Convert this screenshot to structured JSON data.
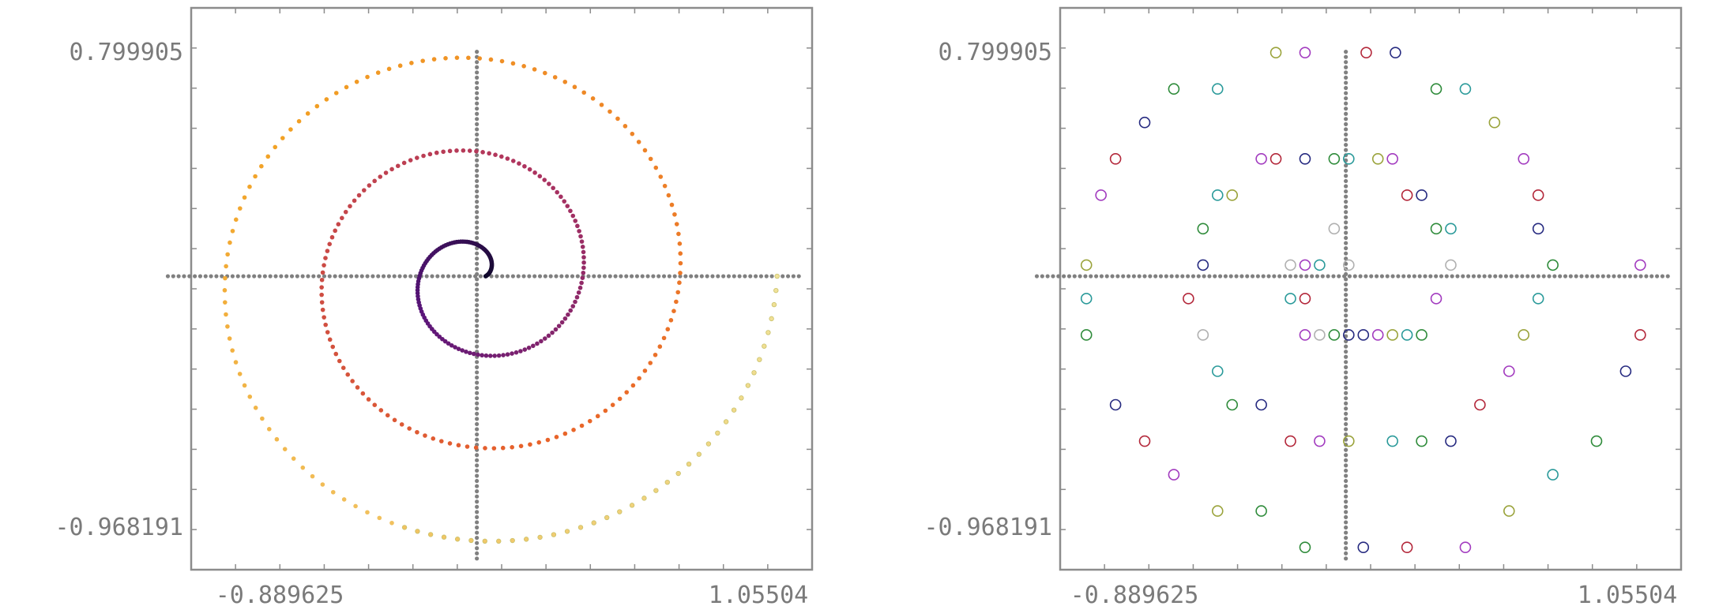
{
  "chart_data": [
    {
      "type": "scatter",
      "title": "",
      "xlabel": "",
      "ylabel": "",
      "xlim": [
        -0.98,
        1.15
      ],
      "ylim": [
        -1.05,
        0.96
      ],
      "x_ticks": [
        {
          "value": -0.889625,
          "label": "-0.889625"
        },
        {
          "value": 1.05504,
          "label": "1.05504"
        }
      ],
      "y_ticks": [
        {
          "value": 0.799905,
          "label": "0.799905"
        },
        {
          "value": -0.968191,
          "label": "-0.968191"
        }
      ],
      "axis_color": "#808080",
      "series": [
        {
          "name": "spiral",
          "style": "filled",
          "colors": [
            "#0d0829",
            "#5a157a",
            "#b0355e",
            "#e8622a",
            "#f2a124",
            "#f0e29a"
          ],
          "points": []
        }
      ]
    },
    {
      "type": "scatter",
      "title": "",
      "xlabel": "",
      "ylabel": "",
      "xlim": [
        -0.98,
        1.15
      ],
      "ylim": [
        -1.05,
        0.96
      ],
      "x_ticks": [
        {
          "value": -0.889625,
          "label": "-0.889625"
        },
        {
          "value": 1.05504,
          "label": "1.05504"
        }
      ],
      "y_ticks": [
        {
          "value": 0.799905,
          "label": "0.799905"
        },
        {
          "value": -0.968191,
          "label": "-0.968191"
        }
      ],
      "axis_color": "#808080",
      "marker_colors": {
        "olive": "#9aa33b",
        "purple": "#a23bbf",
        "crimson": "#b3273a",
        "navy": "#262a80",
        "green": "#2e8b3a",
        "teal": "#2a9a9a",
        "gray": "#b0b0b0"
      },
      "series": [
        {
          "name": "circles",
          "style": "open",
          "points": [
            {
              "x": -0.24,
              "y": 0.8,
              "c": "olive"
            },
            {
              "x": -0.14,
              "y": 0.8,
              "c": "purple"
            },
            {
              "x": 0.07,
              "y": 0.8,
              "c": "crimson"
            },
            {
              "x": 0.17,
              "y": 0.8,
              "c": "navy"
            },
            {
              "x": -0.59,
              "y": 0.67,
              "c": "green"
            },
            {
              "x": -0.44,
              "y": 0.67,
              "c": "teal"
            },
            {
              "x": 0.31,
              "y": 0.67,
              "c": "green"
            },
            {
              "x": 0.41,
              "y": 0.67,
              "c": "teal"
            },
            {
              "x": -0.69,
              "y": 0.55,
              "c": "navy"
            },
            {
              "x": 0.51,
              "y": 0.55,
              "c": "olive"
            },
            {
              "x": -0.79,
              "y": 0.42,
              "c": "crimson"
            },
            {
              "x": -0.29,
              "y": 0.42,
              "c": "purple"
            },
            {
              "x": -0.24,
              "y": 0.42,
              "c": "crimson"
            },
            {
              "x": -0.14,
              "y": 0.42,
              "c": "navy"
            },
            {
              "x": -0.04,
              "y": 0.42,
              "c": "green"
            },
            {
              "x": 0.01,
              "y": 0.42,
              "c": "teal"
            },
            {
              "x": 0.11,
              "y": 0.42,
              "c": "olive"
            },
            {
              "x": 0.16,
              "y": 0.42,
              "c": "purple"
            },
            {
              "x": 0.61,
              "y": 0.42,
              "c": "purple"
            },
            {
              "x": -0.84,
              "y": 0.29,
              "c": "purple"
            },
            {
              "x": -0.44,
              "y": 0.29,
              "c": "teal"
            },
            {
              "x": -0.39,
              "y": 0.29,
              "c": "olive"
            },
            {
              "x": 0.21,
              "y": 0.29,
              "c": "crimson"
            },
            {
              "x": 0.26,
              "y": 0.29,
              "c": "navy"
            },
            {
              "x": 0.66,
              "y": 0.29,
              "c": "crimson"
            },
            {
              "x": -0.49,
              "y": 0.17,
              "c": "green"
            },
            {
              "x": -0.04,
              "y": 0.17,
              "c": "gray"
            },
            {
              "x": 0.31,
              "y": 0.17,
              "c": "green"
            },
            {
              "x": 0.36,
              "y": 0.17,
              "c": "teal"
            },
            {
              "x": 0.66,
              "y": 0.17,
              "c": "navy"
            },
            {
              "x": -0.89,
              "y": 0.04,
              "c": "olive"
            },
            {
              "x": -0.49,
              "y": 0.04,
              "c": "navy"
            },
            {
              "x": -0.19,
              "y": 0.04,
              "c": "gray"
            },
            {
              "x": -0.14,
              "y": 0.04,
              "c": "purple"
            },
            {
              "x": -0.09,
              "y": 0.04,
              "c": "teal"
            },
            {
              "x": 0.01,
              "y": 0.04,
              "c": "gray"
            },
            {
              "x": 0.36,
              "y": 0.04,
              "c": "gray"
            },
            {
              "x": 0.71,
              "y": 0.04,
              "c": "green"
            },
            {
              "x": 1.01,
              "y": 0.04,
              "c": "purple"
            },
            {
              "x": -0.89,
              "y": -0.08,
              "c": "teal"
            },
            {
              "x": -0.54,
              "y": -0.08,
              "c": "crimson"
            },
            {
              "x": -0.19,
              "y": -0.08,
              "c": "teal"
            },
            {
              "x": -0.14,
              "y": -0.08,
              "c": "crimson"
            },
            {
              "x": 0.31,
              "y": -0.08,
              "c": "purple"
            },
            {
              "x": 0.66,
              "y": -0.08,
              "c": "teal"
            },
            {
              "x": -0.89,
              "y": -0.21,
              "c": "green"
            },
            {
              "x": -0.49,
              "y": -0.21,
              "c": "gray"
            },
            {
              "x": -0.14,
              "y": -0.21,
              "c": "purple"
            },
            {
              "x": -0.09,
              "y": -0.21,
              "c": "gray"
            },
            {
              "x": -0.04,
              "y": -0.21,
              "c": "green"
            },
            {
              "x": 0.01,
              "y": -0.21,
              "c": "navy"
            },
            {
              "x": 0.06,
              "y": -0.21,
              "c": "navy"
            },
            {
              "x": 0.11,
              "y": -0.21,
              "c": "purple"
            },
            {
              "x": 0.16,
              "y": -0.21,
              "c": "olive"
            },
            {
              "x": 0.21,
              "y": -0.21,
              "c": "teal"
            },
            {
              "x": 0.26,
              "y": -0.21,
              "c": "green"
            },
            {
              "x": 0.61,
              "y": -0.21,
              "c": "olive"
            },
            {
              "x": 1.01,
              "y": -0.21,
              "c": "crimson"
            },
            {
              "x": -0.44,
              "y": -0.34,
              "c": "teal"
            },
            {
              "x": 0.56,
              "y": -0.34,
              "c": "purple"
            },
            {
              "x": 0.96,
              "y": -0.34,
              "c": "navy"
            },
            {
              "x": -0.79,
              "y": -0.46,
              "c": "navy"
            },
            {
              "x": -0.39,
              "y": -0.46,
              "c": "green"
            },
            {
              "x": -0.29,
              "y": -0.46,
              "c": "navy"
            },
            {
              "x": 0.46,
              "y": -0.46,
              "c": "crimson"
            },
            {
              "x": -0.69,
              "y": -0.59,
              "c": "crimson"
            },
            {
              "x": -0.19,
              "y": -0.59,
              "c": "crimson"
            },
            {
              "x": -0.09,
              "y": -0.59,
              "c": "purple"
            },
            {
              "x": 0.01,
              "y": -0.59,
              "c": "olive"
            },
            {
              "x": 0.16,
              "y": -0.59,
              "c": "teal"
            },
            {
              "x": 0.26,
              "y": -0.59,
              "c": "green"
            },
            {
              "x": 0.36,
              "y": -0.59,
              "c": "navy"
            },
            {
              "x": 0.86,
              "y": -0.59,
              "c": "green"
            },
            {
              "x": -0.59,
              "y": -0.71,
              "c": "purple"
            },
            {
              "x": 0.71,
              "y": -0.71,
              "c": "teal"
            },
            {
              "x": -0.44,
              "y": -0.84,
              "c": "olive"
            },
            {
              "x": -0.29,
              "y": -0.84,
              "c": "green"
            },
            {
              "x": 0.56,
              "y": -0.84,
              "c": "olive"
            },
            {
              "x": -0.14,
              "y": -0.97,
              "c": "green"
            },
            {
              "x": 0.06,
              "y": -0.97,
              "c": "navy"
            },
            {
              "x": 0.21,
              "y": -0.97,
              "c": "crimson"
            },
            {
              "x": 0.41,
              "y": -0.97,
              "c": "purple"
            }
          ]
        }
      ]
    }
  ]
}
